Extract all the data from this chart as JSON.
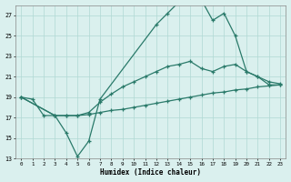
{
  "xlabel": "Humidex (Indice chaleur)",
  "xlim": [
    -0.5,
    23.5
  ],
  "ylim": [
    13,
    28
  ],
  "yticks": [
    13,
    15,
    17,
    19,
    21,
    23,
    25,
    27
  ],
  "xticks": [
    0,
    1,
    2,
    3,
    4,
    5,
    6,
    7,
    8,
    9,
    10,
    11,
    12,
    13,
    14,
    15,
    16,
    17,
    18,
    19,
    20,
    21,
    22,
    23
  ],
  "bg_color": "#daf0ee",
  "grid_color": "#b0d8d4",
  "line_color": "#2a7a6a",
  "line1_x": [
    0,
    1,
    2,
    3,
    4,
    5,
    6,
    7,
    12,
    13,
    14,
    15,
    16,
    17,
    18,
    19,
    20,
    21,
    22,
    23
  ],
  "line1_y": [
    19,
    18.8,
    17.2,
    17.2,
    15.5,
    13.2,
    14.7,
    18.8,
    26.1,
    27.2,
    28.3,
    28.6,
    28.5,
    26.5,
    27.2,
    25.0,
    21.5,
    21.0,
    20.2,
    20.2
  ],
  "line2_x": [
    0,
    3,
    4,
    5,
    6,
    7,
    8,
    9,
    10,
    11,
    12,
    13,
    14,
    15,
    16,
    17,
    18,
    19,
    20,
    21,
    22,
    23
  ],
  "line2_y": [
    19,
    17.2,
    17.2,
    17.2,
    17.5,
    18.5,
    19.3,
    20.0,
    20.5,
    21.0,
    21.5,
    22.0,
    22.2,
    22.5,
    21.8,
    21.5,
    22.0,
    22.2,
    21.5,
    21.0,
    20.5,
    20.3
  ],
  "line3_x": [
    0,
    3,
    4,
    5,
    6,
    7,
    8,
    9,
    10,
    11,
    12,
    13,
    14,
    15,
    16,
    17,
    18,
    19,
    20,
    21,
    22,
    23
  ],
  "line3_y": [
    19,
    17.2,
    17.2,
    17.2,
    17.3,
    17.5,
    17.7,
    17.8,
    18.0,
    18.2,
    18.4,
    18.6,
    18.8,
    19.0,
    19.2,
    19.4,
    19.5,
    19.7,
    19.8,
    20.0,
    20.1,
    20.2
  ]
}
